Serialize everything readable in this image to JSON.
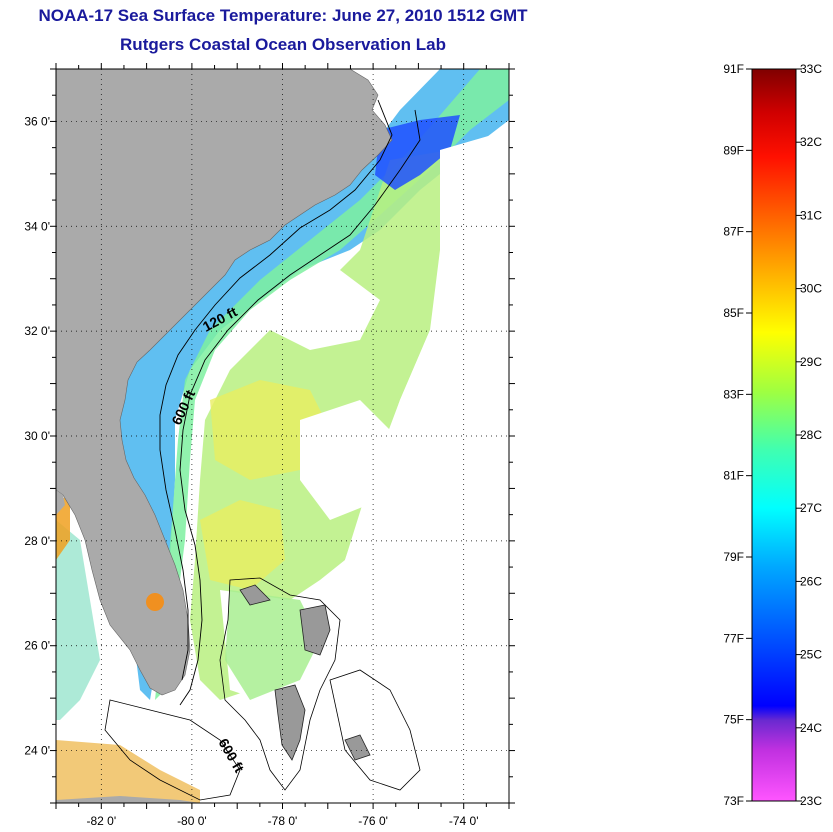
{
  "title": "NOAA-17 Sea Surface Temperature:  June 27, 2010 1512 GMT",
  "subtitle": "Rutgers Coastal Ocean Observation Lab",
  "map": {
    "lon_range": [
      -83.0,
      -73.0
    ],
    "lat_range": [
      23.0,
      37.0
    ],
    "grid": "dotted",
    "lon_ticks": [
      {
        "value": -82,
        "label": "-82 0'"
      },
      {
        "value": -80,
        "label": "-80 0'"
      },
      {
        "value": -78,
        "label": "-78 0'"
      },
      {
        "value": -76,
        "label": "-76 0'"
      },
      {
        "value": -74,
        "label": "-74 0'"
      }
    ],
    "lat_ticks": [
      {
        "value": 36,
        "label": "36 0'"
      },
      {
        "value": 34,
        "label": "34 0'"
      },
      {
        "value": 32,
        "label": "32 0'"
      },
      {
        "value": 30,
        "label": "30 0'"
      },
      {
        "value": 28,
        "label": "28 0'"
      },
      {
        "value": 26,
        "label": "26 0'"
      },
      {
        "value": 24,
        "label": "24 0'"
      }
    ],
    "contour_labels": [
      "120 ft",
      "600 ft",
      "600 ft"
    ],
    "land_color": "#aaaaaa",
    "no_data_color": "#ffffff"
  },
  "colorbar": {
    "f_labels": [
      "91F",
      "89F",
      "87F",
      "85F",
      "83F",
      "81F",
      "79F",
      "77F",
      "75F",
      "73F"
    ],
    "c_labels": [
      "33C",
      "32C",
      "31C",
      "30C",
      "29C",
      "28C",
      "27C",
      "26C",
      "25C",
      "24C",
      "23C"
    ],
    "range_c": [
      23,
      33
    ],
    "range_f": [
      73,
      91
    ]
  }
}
